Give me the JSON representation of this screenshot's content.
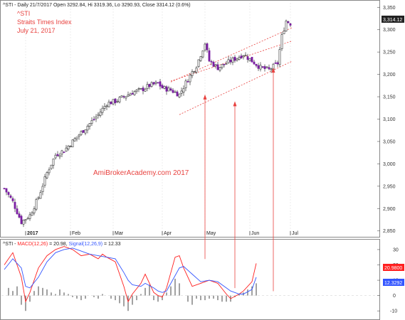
{
  "header": {
    "info": "^STI - Daily 21/7/2017 Open 3292.84, Hi 3319.36, Lo 3290.93, Close 3314.12 (0.6%)",
    "symbol": "^STI",
    "name": "Straits Times Index",
    "date": "July 21, 2017"
  },
  "watermark": "AmiBrokerAcademy.com  2017",
  "price_badge": "3,314.12",
  "macd_header": {
    "prefix": "^STI - ",
    "macd_label": "MACD(12,26)",
    "macd_value": " = 20.98, ",
    "signal_label": "Signal(12,26,9)",
    "signal_value": " = 12.33"
  },
  "macd_badges": {
    "macd": "20.9800",
    "signal": "12.3292"
  },
  "colors": {
    "accent_red": "#e8423f",
    "macd_line": "#ff1f1f",
    "signal_line": "#3355ff",
    "candle_up": "#2a2a2a",
    "candle_down": "#7a1fa2",
    "histogram": "#555555"
  },
  "chart_data": [
    {
      "type": "candlestick",
      "title": "Straits Times Index",
      "x_labels": [
        "2017",
        "Feb",
        "Mar",
        "Apr",
        "May",
        "Jun",
        "Jul"
      ],
      "y_ticks": [
        2850,
        2900,
        2950,
        3000,
        3050,
        3100,
        3150,
        3200,
        3250,
        3300,
        3350
      ],
      "ylim": [
        2840,
        3360
      ],
      "close_path": [
        [
          0,
          2945
        ],
        [
          4,
          2915
        ],
        [
          8,
          2870
        ],
        [
          12,
          2885
        ],
        [
          16,
          2925
        ],
        [
          20,
          2980
        ],
        [
          24,
          3020
        ],
        [
          28,
          3030
        ],
        [
          32,
          3050
        ],
        [
          36,
          3070
        ],
        [
          40,
          3090
        ],
        [
          44,
          3110
        ],
        [
          48,
          3135
        ],
        [
          52,
          3140
        ],
        [
          56,
          3150
        ],
        [
          60,
          3160
        ],
        [
          64,
          3165
        ],
        [
          68,
          3175
        ],
        [
          72,
          3180
        ],
        [
          74,
          3170
        ],
        [
          78,
          3165
        ],
        [
          82,
          3155
        ],
        [
          86,
          3190
        ],
        [
          90,
          3220
        ],
        [
          94,
          3270
        ],
        [
          96,
          3230
        ],
        [
          100,
          3215
        ],
        [
          104,
          3225
        ],
        [
          108,
          3235
        ],
        [
          112,
          3245
        ],
        [
          116,
          3230
        ],
        [
          120,
          3215
        ],
        [
          124,
          3210
        ],
        [
          128,
          3225
        ],
        [
          130,
          3285
        ],
        [
          132,
          3320
        ],
        [
          134,
          3314
        ]
      ],
      "trend_channel": [
        {
          "start": [
            78,
            3185
          ],
          "end": [
            135,
            3275
          ]
        },
        {
          "start": [
            82,
            3110
          ],
          "end": [
            135,
            3230
          ]
        },
        {
          "start": [
            78,
            3183
          ],
          "end": [
            135,
            3305
          ]
        }
      ],
      "last_close": 3314.12
    },
    {
      "type": "line",
      "title": "MACD(12,26)",
      "y_ticks": [
        -10,
        0,
        10,
        20,
        30
      ],
      "ylim": [
        -15,
        36
      ],
      "series": [
        {
          "name": "MACD(12,26)",
          "values": [
            [
              0,
              20
            ],
            [
              4,
              28
            ],
            [
              8,
              12
            ],
            [
              10,
              -4
            ],
            [
              12,
              2
            ],
            [
              16,
              18
            ],
            [
              20,
              26
            ],
            [
              24,
              30
            ],
            [
              28,
              32
            ],
            [
              32,
              30
            ],
            [
              36,
              26
            ],
            [
              40,
              27
            ],
            [
              44,
              24
            ],
            [
              46,
              27
            ],
            [
              48,
              25
            ],
            [
              52,
              22
            ],
            [
              56,
              6
            ],
            [
              58,
              -4
            ],
            [
              60,
              1
            ],
            [
              64,
              8
            ],
            [
              66,
              14
            ],
            [
              70,
              2
            ],
            [
              72,
              0
            ],
            [
              74,
              -1
            ],
            [
              76,
              5
            ],
            [
              80,
              25
            ],
            [
              82,
              26
            ],
            [
              84,
              18
            ],
            [
              88,
              6
            ],
            [
              92,
              8
            ],
            [
              96,
              10
            ],
            [
              100,
              8
            ],
            [
              104,
              1
            ],
            [
              106,
              -2
            ],
            [
              110,
              1
            ],
            [
              112,
              3
            ],
            [
              116,
              9
            ],
            [
              118,
              21
            ]
          ]
        },
        {
          "name": "Signal(12,26,9)",
          "values": [
            [
              0,
              17
            ],
            [
              4,
              24
            ],
            [
              8,
              18
            ],
            [
              10,
              6
            ],
            [
              12,
              5
            ],
            [
              16,
              12
            ],
            [
              20,
              22
            ],
            [
              24,
              28
            ],
            [
              28,
              30
            ],
            [
              32,
              31
            ],
            [
              36,
              29
            ],
            [
              40,
              27
            ],
            [
              44,
              26
            ],
            [
              48,
              25
            ],
            [
              52,
              24
            ],
            [
              56,
              15
            ],
            [
              58,
              10
            ],
            [
              60,
              7
            ],
            [
              64,
              6
            ],
            [
              66,
              8
            ],
            [
              70,
              5
            ],
            [
              72,
              3
            ],
            [
              74,
              2
            ],
            [
              76,
              3
            ],
            [
              80,
              13
            ],
            [
              82,
              18
            ],
            [
              84,
              19
            ],
            [
              88,
              14
            ],
            [
              92,
              9
            ],
            [
              96,
              10
            ],
            [
              100,
              9
            ],
            [
              104,
              5
            ],
            [
              106,
              3
            ],
            [
              110,
              1
            ],
            [
              112,
              1
            ],
            [
              116,
              4
            ],
            [
              118,
              12
            ]
          ]
        }
      ],
      "histogram": [
        [
          2,
          5
        ],
        [
          4,
          3
        ],
        [
          6,
          6
        ],
        [
          8,
          -6
        ],
        [
          10,
          -10
        ],
        [
          12,
          -4
        ],
        [
          14,
          3
        ],
        [
          16,
          6
        ],
        [
          18,
          5
        ],
        [
          20,
          4
        ],
        [
          22,
          2
        ],
        [
          24,
          1
        ],
        [
          26,
          4
        ],
        [
          28,
          2
        ],
        [
          30,
          1
        ],
        [
          32,
          -1
        ],
        [
          34,
          -2
        ],
        [
          36,
          -3
        ],
        [
          38,
          -2
        ],
        [
          40,
          0
        ],
        [
          42,
          -1
        ],
        [
          44,
          -2
        ],
        [
          46,
          1
        ],
        [
          48,
          0
        ],
        [
          50,
          -2
        ],
        [
          52,
          -3
        ],
        [
          54,
          -5
        ],
        [
          56,
          -7
        ],
        [
          58,
          -10
        ],
        [
          60,
          -6
        ],
        [
          62,
          -3
        ],
        [
          64,
          1
        ],
        [
          66,
          5
        ],
        [
          68,
          7
        ],
        [
          70,
          -3
        ],
        [
          72,
          -4
        ],
        [
          74,
          -3
        ],
        [
          76,
          2
        ],
        [
          78,
          6
        ],
        [
          80,
          11
        ],
        [
          82,
          8
        ],
        [
          84,
          0
        ],
        [
          86,
          -4
        ],
        [
          88,
          -6
        ],
        [
          90,
          -2
        ],
        [
          92,
          -3
        ],
        [
          94,
          -3
        ],
        [
          96,
          -2
        ],
        [
          98,
          -2
        ],
        [
          100,
          -3
        ],
        [
          102,
          -4
        ],
        [
          104,
          -4
        ],
        [
          106,
          -4
        ],
        [
          108,
          -1
        ],
        [
          110,
          1
        ],
        [
          112,
          2
        ],
        [
          114,
          4
        ],
        [
          116,
          6
        ],
        [
          118,
          8
        ]
      ]
    }
  ]
}
